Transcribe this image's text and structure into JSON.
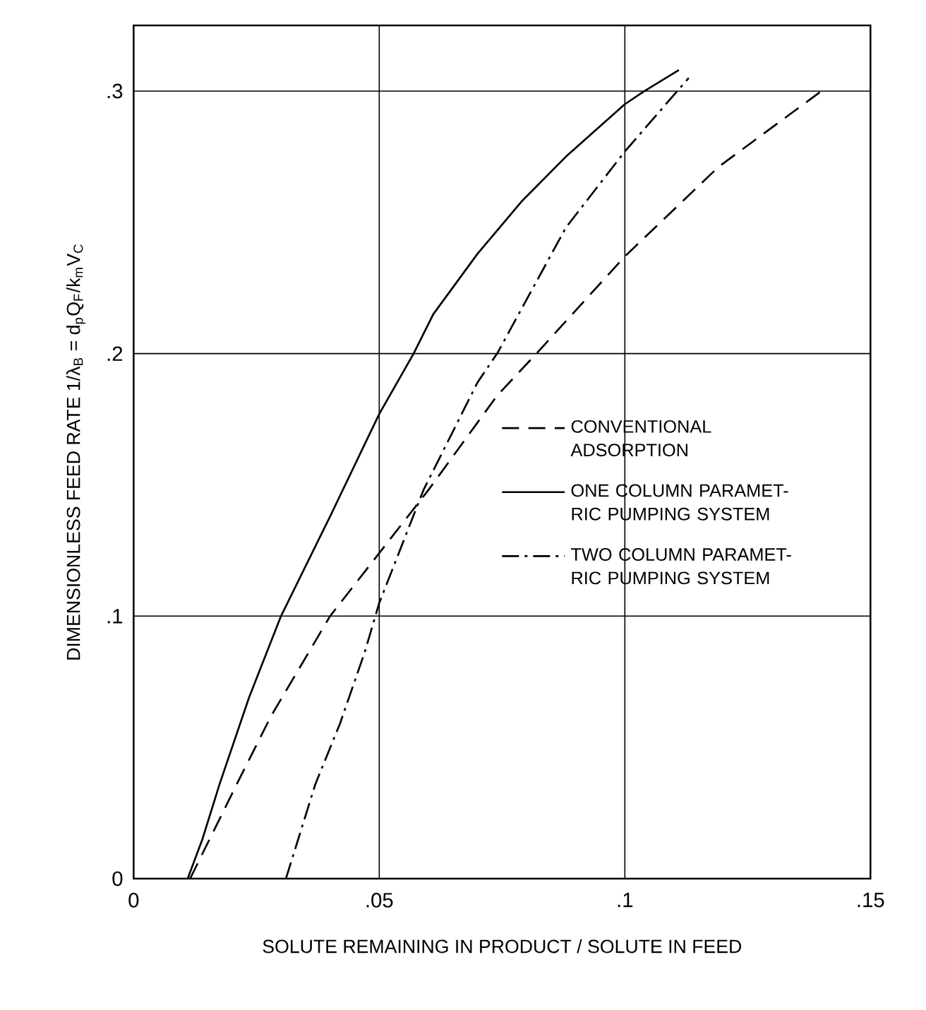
{
  "chart_data": {
    "type": "line",
    "xlabel": "SOLUTE REMAINING IN PRODUCT / SOLUTE IN FEED",
    "ylabel": "DIMENSIONLESS FEED RATE   1/λ$_{B}$ = d$_{p}$Q$_{F}$/k$_{m}$V$_{C}$",
    "xlim": [
      0,
      0.15
    ],
    "ylim": [
      0,
      0.325
    ],
    "xticks": [
      0,
      {
        "value": 0.05,
        "label": ".05"
      },
      {
        "value": 0.1,
        "label": ".1"
      },
      {
        "value": 0.15,
        "label": ".15"
      }
    ],
    "yticks": [
      0,
      {
        "value": 0.1,
        "label": ".1"
      },
      {
        "value": 0.2,
        "label": ".2"
      },
      {
        "value": 0.3,
        "label": ".3"
      }
    ],
    "grid": true,
    "legend": "right",
    "marker": "none",
    "series": [
      {
        "name": "CONVENTIONAL ADSORPTION",
        "color": "#000000",
        "line_style": "dashed",
        "x": [
          0.0115,
          0.021,
          0.028,
          0.04,
          0.05,
          0.06,
          0.074,
          0.082,
          0.1,
          0.119,
          0.14
        ],
        "values": [
          0,
          0.036,
          0.062,
          0.1,
          0.124,
          0.148,
          0.184,
          0.2,
          0.237,
          0.271,
          0.3
        ]
      },
      {
        "name": "ONE COLUMN PARAMET-RIC PUMPING SYSTEM",
        "color": "#000000",
        "line_style": "solid",
        "x": [
          0.011,
          0.014,
          0.0175,
          0.0235,
          0.03,
          0.04,
          0.05,
          0.057,
          0.061,
          0.07,
          0.079,
          0.088,
          0.1,
          0.104,
          0.111
        ],
        "values": [
          0,
          0.015,
          0.036,
          0.069,
          0.1,
          0.138,
          0.177,
          0.2,
          0.215,
          0.238,
          0.258,
          0.275,
          0.295,
          0.3,
          0.308
        ]
      },
      {
        "name": "TWO COLUMN PARAMET-RIC PUMPING SYSTEM",
        "color": "#000000",
        "line_style": "dashdot",
        "x": [
          0.031,
          0.037,
          0.042,
          0.047,
          0.05,
          0.059,
          0.07,
          0.074,
          0.088,
          0.1,
          0.113
        ],
        "values": [
          0,
          0.036,
          0.059,
          0.086,
          0.105,
          0.148,
          0.189,
          0.2,
          0.248,
          0.277,
          0.305
        ]
      }
    ]
  }
}
